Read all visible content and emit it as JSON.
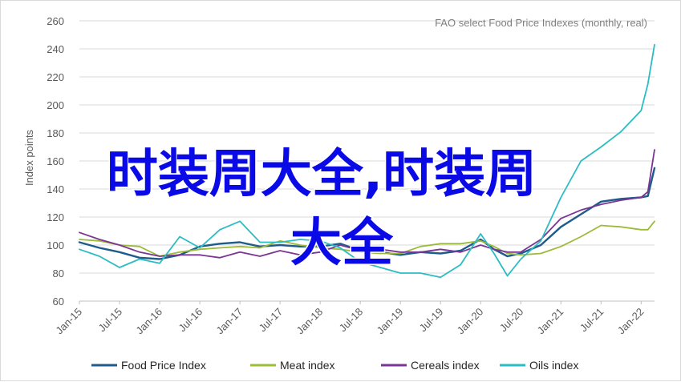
{
  "chart_data": {
    "type": "line",
    "title": "FAO select Food Price Indexes (monthly, real)",
    "ylabel": "Index points",
    "xlabel": "",
    "ylim": [
      60,
      260
    ],
    "yticks": [
      60,
      80,
      100,
      120,
      140,
      160,
      180,
      200,
      220,
      240,
      260
    ],
    "xticks": [
      "Jan-15",
      "Jul-15",
      "Jan-16",
      "Jul-16",
      "Jan-17",
      "Jul-17",
      "Jan-18",
      "Jul-18",
      "Jan-19",
      "Jul-19",
      "Jan-20",
      "Jul-20",
      "Jan-21",
      "Jul-21",
      "Jan-22"
    ],
    "x": [
      "2015-01",
      "2015-04",
      "2015-07",
      "2015-10",
      "2016-01",
      "2016-04",
      "2016-07",
      "2016-10",
      "2017-01",
      "2017-04",
      "2017-07",
      "2017-10",
      "2018-01",
      "2018-04",
      "2018-07",
      "2018-10",
      "2019-01",
      "2019-04",
      "2019-07",
      "2019-10",
      "2020-01",
      "2020-03",
      "2020-05",
      "2020-07",
      "2020-10",
      "2021-01",
      "2021-04",
      "2021-07",
      "2021-10",
      "2022-01",
      "2022-02",
      "2022-03"
    ],
    "series": [
      {
        "name": "Food Price Index",
        "color": "#1f5c8b",
        "values": [
          102,
          98,
          95,
          91,
          90,
          93,
          99,
          101,
          102,
          99,
          100,
          99,
          99,
          101,
          96,
          95,
          93,
          95,
          94,
          96,
          104,
          97,
          92,
          94,
          100,
          113,
          122,
          131,
          133,
          134,
          135,
          155
        ]
      },
      {
        "name": "Meat index",
        "color": "#9bbb39",
        "values": [
          104,
          103,
          100,
          99,
          92,
          95,
          97,
          98,
          99,
          98,
          103,
          100,
          98,
          97,
          95,
          94,
          94,
          99,
          101,
          101,
          103,
          99,
          94,
          93,
          94,
          99,
          106,
          114,
          113,
          111,
          111,
          117
        ]
      },
      {
        "name": "Cereals index",
        "color": "#7b3593",
        "values": [
          109,
          104,
          100,
          95,
          92,
          93,
          93,
          91,
          95,
          92,
          96,
          93,
          95,
          100,
          96,
          97,
          95,
          95,
          97,
          95,
          100,
          97,
          95,
          95,
          104,
          119,
          125,
          129,
          132,
          134,
          138,
          168
        ]
      },
      {
        "name": "Oils index",
        "color": "#2cbcc4",
        "values": [
          97,
          92,
          84,
          90,
          87,
          106,
          98,
          111,
          117,
          102,
          102,
          104,
          103,
          98,
          88,
          84,
          80,
          80,
          77,
          86,
          108,
          94,
          78,
          90,
          103,
          134,
          160,
          170,
          181,
          196,
          215,
          243
        ]
      }
    ],
    "legend_position": "bottom",
    "grid": "horizontal"
  },
  "overlay_text": {
    "line1": "时装周大全,时装周",
    "line2": "大全"
  }
}
